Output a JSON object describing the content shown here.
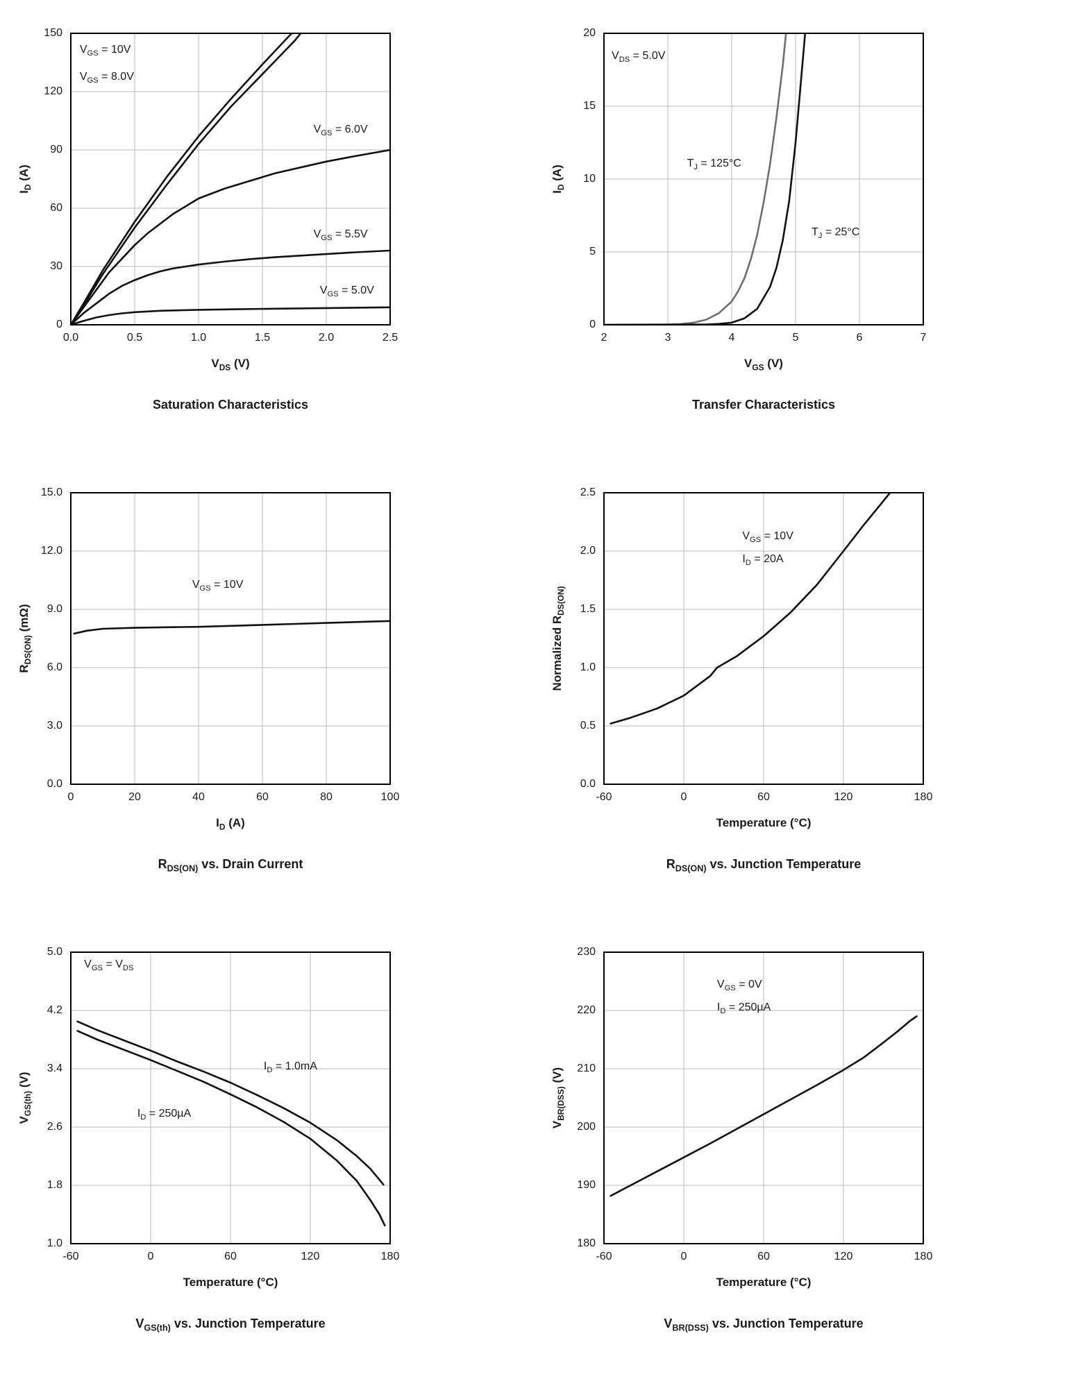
{
  "page": {
    "background": "#ffffff"
  },
  "colors": {
    "curve": "#111111",
    "curve_gray": "#6e6e6e",
    "grid": "#b8b8b8",
    "frame": "#000000",
    "text": "#1a1a1a"
  },
  "chart_data": [
    {
      "type": "line",
      "title": "Saturation Characteristics",
      "xlabel": "V_{DS} (V)",
      "ylabel": "I_{D} (A)",
      "xlim": [
        0,
        2.5
      ],
      "ylim": [
        0,
        150
      ],
      "grid": true,
      "xticks": {
        "values": [
          0,
          0.5,
          1.0,
          1.5,
          2.0,
          2.5
        ],
        "labels": [
          "0.0",
          "0.5",
          "1.0",
          "1.5",
          "2.0",
          "2.5"
        ]
      },
      "yticks": {
        "values": [
          0,
          30,
          60,
          90,
          120,
          150
        ],
        "labels": [
          "0",
          "30",
          "60",
          "90",
          "120",
          "150"
        ]
      },
      "series": [
        {
          "name": "V_{GS} = 10V",
          "color": "#111111",
          "points": [
            [
              0,
              0
            ],
            [
              0.1,
              11
            ],
            [
              0.25,
              28
            ],
            [
              0.5,
              53
            ],
            [
              0.75,
              76
            ],
            [
              1.0,
              97
            ],
            [
              1.25,
              116
            ],
            [
              1.5,
              134
            ],
            [
              1.7,
              148
            ],
            [
              1.73,
              150
            ]
          ]
        },
        {
          "name": "V_{GS} = 8.0V",
          "color": "#111111",
          "points": [
            [
              0,
              0
            ],
            [
              0.1,
              10
            ],
            [
              0.25,
              26
            ],
            [
              0.5,
              50
            ],
            [
              0.75,
              72
            ],
            [
              1.0,
              93
            ],
            [
              1.25,
              112
            ],
            [
              1.5,
              129
            ],
            [
              1.75,
              146
            ],
            [
              1.8,
              150
            ]
          ]
        },
        {
          "name": "V_{GS} = 6.0V",
          "color": "#111111",
          "points": [
            [
              0,
              0
            ],
            [
              0.1,
              9
            ],
            [
              0.2,
              18
            ],
            [
              0.3,
              27
            ],
            [
              0.4,
              34
            ],
            [
              0.5,
              41
            ],
            [
              0.6,
              47
            ],
            [
              0.7,
              52
            ],
            [
              0.8,
              57
            ],
            [
              0.9,
              61
            ],
            [
              1.0,
              65
            ],
            [
              1.1,
              67.5
            ],
            [
              1.2,
              70
            ],
            [
              1.4,
              74
            ],
            [
              1.6,
              78
            ],
            [
              1.8,
              81
            ],
            [
              2.0,
              84
            ],
            [
              2.2,
              86.5
            ],
            [
              2.5,
              90
            ]
          ]
        },
        {
          "name": "V_{GS} = 5.5V",
          "color": "#111111",
          "points": [
            [
              0,
              0
            ],
            [
              0.1,
              6
            ],
            [
              0.2,
              11
            ],
            [
              0.3,
              16
            ],
            [
              0.4,
              20
            ],
            [
              0.5,
              23
            ],
            [
              0.6,
              25.5
            ],
            [
              0.7,
              27.5
            ],
            [
              0.8,
              29
            ],
            [
              0.9,
              30
            ],
            [
              1.0,
              31
            ],
            [
              1.2,
              32.5
            ],
            [
              1.4,
              33.8
            ],
            [
              1.6,
              34.8
            ],
            [
              1.8,
              35.6
            ],
            [
              2.0,
              36.4
            ],
            [
              2.2,
              37.2
            ],
            [
              2.5,
              38.2
            ]
          ]
        },
        {
          "name": "V_{GS} = 5.0V",
          "color": "#111111",
          "points": [
            [
              0,
              0
            ],
            [
              0.1,
              2
            ],
            [
              0.2,
              3.8
            ],
            [
              0.3,
              5
            ],
            [
              0.4,
              5.9
            ],
            [
              0.5,
              6.5
            ],
            [
              0.7,
              7.2
            ],
            [
              1.0,
              7.7
            ],
            [
              1.3,
              8.0
            ],
            [
              1.6,
              8.3
            ],
            [
              2.0,
              8.6
            ],
            [
              2.5,
              9.0
            ]
          ]
        }
      ],
      "annotations": [
        {
          "text": "V_{GS} = 10V",
          "x": 0.07,
          "y": 141,
          "anchor": "start"
        },
        {
          "text": "V_{GS} = 8.0V",
          "x": 0.07,
          "y": 127,
          "anchor": "start"
        },
        {
          "text": "V_{GS} = 6.0V",
          "x": 1.9,
          "y": 100,
          "anchor": "start"
        },
        {
          "text": "V_{GS} = 5.5V",
          "x": 1.9,
          "y": 46,
          "anchor": "start"
        },
        {
          "text": "V_{GS} = 5.0V",
          "x": 1.95,
          "y": 17,
          "anchor": "start"
        }
      ]
    },
    {
      "type": "line",
      "title": "Transfer Characteristics",
      "xlabel": "V_{GS} (V)",
      "ylabel": "I_{D} (A)",
      "xlim": [
        2,
        7
      ],
      "ylim": [
        0,
        20
      ],
      "grid": true,
      "xticks": {
        "values": [
          2,
          3,
          4,
          5,
          6,
          7
        ],
        "labels": [
          "2",
          "3",
          "4",
          "5",
          "6",
          "7"
        ]
      },
      "yticks": {
        "values": [
          0,
          5,
          10,
          15,
          20
        ],
        "labels": [
          "0",
          "5",
          "10",
          "15",
          "20"
        ]
      },
      "series": [
        {
          "name": "T_{J} = 125°C",
          "color": "#6e6e6e",
          "points": [
            [
              2,
              0
            ],
            [
              3.0,
              0.02
            ],
            [
              3.2,
              0.05
            ],
            [
              3.4,
              0.15
            ],
            [
              3.6,
              0.35
            ],
            [
              3.8,
              0.8
            ],
            [
              4.0,
              1.6
            ],
            [
              4.1,
              2.3
            ],
            [
              4.2,
              3.2
            ],
            [
              4.3,
              4.5
            ],
            [
              4.4,
              6.2
            ],
            [
              4.5,
              8.4
            ],
            [
              4.6,
              11
            ],
            [
              4.7,
              14.2
            ],
            [
              4.8,
              17.8
            ],
            [
              4.85,
              20
            ]
          ]
        },
        {
          "name": "T_{J} = 25°C",
          "color": "#111111",
          "points": [
            [
              2,
              0
            ],
            [
              3.6,
              0.02
            ],
            [
              3.8,
              0.06
            ],
            [
              4.0,
              0.15
            ],
            [
              4.2,
              0.45
            ],
            [
              4.4,
              1.1
            ],
            [
              4.6,
              2.6
            ],
            [
              4.7,
              3.9
            ],
            [
              4.8,
              5.8
            ],
            [
              4.9,
              8.5
            ],
            [
              5.0,
              12.5
            ],
            [
              5.1,
              17.5
            ],
            [
              5.15,
              20
            ]
          ]
        }
      ],
      "annotations": [
        {
          "text": "V_{DS} = 5.0V",
          "x": 2.12,
          "y": 18.4,
          "anchor": "start"
        },
        {
          "text": "T_{J} = 125°C",
          "x": 3.3,
          "y": 11,
          "anchor": "start"
        },
        {
          "text": "T_{J} = 25°C",
          "x": 5.25,
          "y": 6.3,
          "anchor": "start"
        }
      ]
    },
    {
      "type": "line",
      "title": "R_{DS(ON)} vs. Drain Current",
      "xlabel": "I_{D} (A)",
      "ylabel": "R_{DS(ON)} (mΩ)",
      "xlim": [
        0,
        100
      ],
      "ylim": [
        0,
        15
      ],
      "grid": true,
      "xticks": {
        "values": [
          0,
          20,
          40,
          60,
          80,
          100
        ],
        "labels": [
          "0",
          "20",
          "40",
          "60",
          "80",
          "100"
        ]
      },
      "yticks": {
        "values": [
          0,
          3,
          6,
          9,
          12,
          15
        ],
        "labels": [
          "0.0",
          "3.0",
          "6.0",
          "9.0",
          "12.0",
          "15.0"
        ]
      },
      "series": [
        {
          "name": "V_{GS} = 10V",
          "color": "#111111",
          "points": [
            [
              1,
              7.75
            ],
            [
              5,
              7.9
            ],
            [
              10,
              8.0
            ],
            [
              20,
              8.05
            ],
            [
              30,
              8.08
            ],
            [
              40,
              8.1
            ],
            [
              50,
              8.15
            ],
            [
              60,
              8.2
            ],
            [
              70,
              8.25
            ],
            [
              80,
              8.3
            ],
            [
              90,
              8.35
            ],
            [
              100,
              8.4
            ]
          ]
        }
      ],
      "annotations": [
        {
          "text": "V_{GS} = 10V",
          "x": 46,
          "y": 10.2,
          "anchor": "middle"
        }
      ]
    },
    {
      "type": "line",
      "title": "R_{DS(ON)} vs. Junction Temperature",
      "xlabel": "Temperature (°C)",
      "ylabel": "Normalized R_{DS(ON)}",
      "xlim": [
        -60,
        180
      ],
      "ylim": [
        0,
        2.5
      ],
      "grid": true,
      "xticks": {
        "values": [
          -60,
          0,
          60,
          120,
          180
        ],
        "labels": [
          "-60",
          "0",
          "60",
          "120",
          "180"
        ]
      },
      "yticks": {
        "values": [
          0,
          0.5,
          1.0,
          1.5,
          2.0,
          2.5
        ],
        "labels": [
          "0.0",
          "0.5",
          "1.0",
          "1.5",
          "2.0",
          "2.5"
        ]
      },
      "series": [
        {
          "name": "V_{GS} = 10V, I_{D} = 20A",
          "color": "#111111",
          "points": [
            [
              -55,
              0.52
            ],
            [
              -40,
              0.57
            ],
            [
              -20,
              0.65
            ],
            [
              0,
              0.76
            ],
            [
              20,
              0.93
            ],
            [
              25,
              1.0
            ],
            [
              40,
              1.1
            ],
            [
              60,
              1.27
            ],
            [
              80,
              1.47
            ],
            [
              100,
              1.71
            ],
            [
              120,
              2.0
            ],
            [
              135,
              2.22
            ],
            [
              150,
              2.43
            ],
            [
              155,
              2.5
            ]
          ]
        }
      ],
      "annotations": [
        {
          "text": "V_{GS} = 10V",
          "x": 44,
          "y": 2.12,
          "anchor": "start"
        },
        {
          "text": "I_{D} = 20A",
          "x": 44,
          "y": 1.92,
          "anchor": "start"
        }
      ]
    },
    {
      "type": "line",
      "title": "V_{GS(th)} vs. Junction Temperature",
      "xlabel": "Temperature (°C)",
      "ylabel": "V_{GS(th)} (V)",
      "xlim": [
        -60,
        180
      ],
      "ylim": [
        1.0,
        5.0
      ],
      "grid": true,
      "xticks": {
        "values": [
          -60,
          0,
          60,
          120,
          180
        ],
        "labels": [
          "-60",
          "0",
          "60",
          "120",
          "180"
        ]
      },
      "yticks": {
        "values": [
          1.0,
          1.8,
          2.6,
          3.4,
          4.2,
          5.0
        ],
        "labels": [
          "1.0",
          "1.8",
          "2.6",
          "3.4",
          "4.2",
          "5.0"
        ]
      },
      "series": [
        {
          "name": "I_{D} = 1.0mA",
          "color": "#111111",
          "points": [
            [
              -55,
              4.05
            ],
            [
              -40,
              3.93
            ],
            [
              -20,
              3.79
            ],
            [
              0,
              3.65
            ],
            [
              20,
              3.5
            ],
            [
              40,
              3.36
            ],
            [
              60,
              3.21
            ],
            [
              80,
              3.04
            ],
            [
              100,
              2.86
            ],
            [
              120,
              2.66
            ],
            [
              140,
              2.42
            ],
            [
              155,
              2.2
            ],
            [
              165,
              2.03
            ],
            [
              175,
              1.81
            ]
          ]
        },
        {
          "name": "I_{D} = 250µA",
          "color": "#111111",
          "points": [
            [
              -55,
              3.92
            ],
            [
              -40,
              3.8
            ],
            [
              -20,
              3.66
            ],
            [
              0,
              3.52
            ],
            [
              20,
              3.37
            ],
            [
              40,
              3.22
            ],
            [
              60,
              3.05
            ],
            [
              80,
              2.87
            ],
            [
              100,
              2.67
            ],
            [
              120,
              2.44
            ],
            [
              140,
              2.14
            ],
            [
              155,
              1.86
            ],
            [
              165,
              1.6
            ],
            [
              172,
              1.4
            ],
            [
              176,
              1.25
            ]
          ]
        }
      ],
      "annotations": [
        {
          "text": "V_{GS} = V_{DS}",
          "x": -50,
          "y": 4.82,
          "anchor": "start"
        },
        {
          "text": "I_{D} = 1.0mA",
          "x": 85,
          "y": 3.42,
          "anchor": "start"
        },
        {
          "text": "I_{D} = 250µA",
          "x": -10,
          "y": 2.77,
          "anchor": "start"
        }
      ]
    },
    {
      "type": "line",
      "title": "V_{BR(DSS)} vs. Junction Temperature",
      "xlabel": "Temperature (°C)",
      "ylabel": "V_{BR(DSS)} (V)",
      "xlim": [
        -60,
        180
      ],
      "ylim": [
        180,
        230
      ],
      "grid": true,
      "xticks": {
        "values": [
          -60,
          0,
          60,
          120,
          180
        ],
        "labels": [
          "-60",
          "0",
          "60",
          "120",
          "180"
        ]
      },
      "yticks": {
        "values": [
          180,
          190,
          200,
          210,
          220,
          230
        ],
        "labels": [
          "180",
          "190",
          "200",
          "210",
          "220",
          "230"
        ]
      },
      "series": [
        {
          "name": "V_{GS} = 0V, I_{D} = 250µA",
          "color": "#111111",
          "points": [
            [
              -55,
              188.2
            ],
            [
              -40,
              190
            ],
            [
              -20,
              192.4
            ],
            [
              0,
              194.8
            ],
            [
              20,
              197.2
            ],
            [
              40,
              199.7
            ],
            [
              60,
              202.2
            ],
            [
              80,
              204.7
            ],
            [
              100,
              207.2
            ],
            [
              120,
              209.8
            ],
            [
              135,
              211.9
            ],
            [
              150,
              214.5
            ],
            [
              160,
              216.3
            ],
            [
              170,
              218.2
            ],
            [
              175,
              219
            ]
          ]
        }
      ],
      "annotations": [
        {
          "text": "V_{GS} = 0V",
          "x": 25,
          "y": 224.3,
          "anchor": "start"
        },
        {
          "text": "I_{D} = 250µA",
          "x": 25,
          "y": 220.3,
          "anchor": "start"
        }
      ]
    }
  ]
}
